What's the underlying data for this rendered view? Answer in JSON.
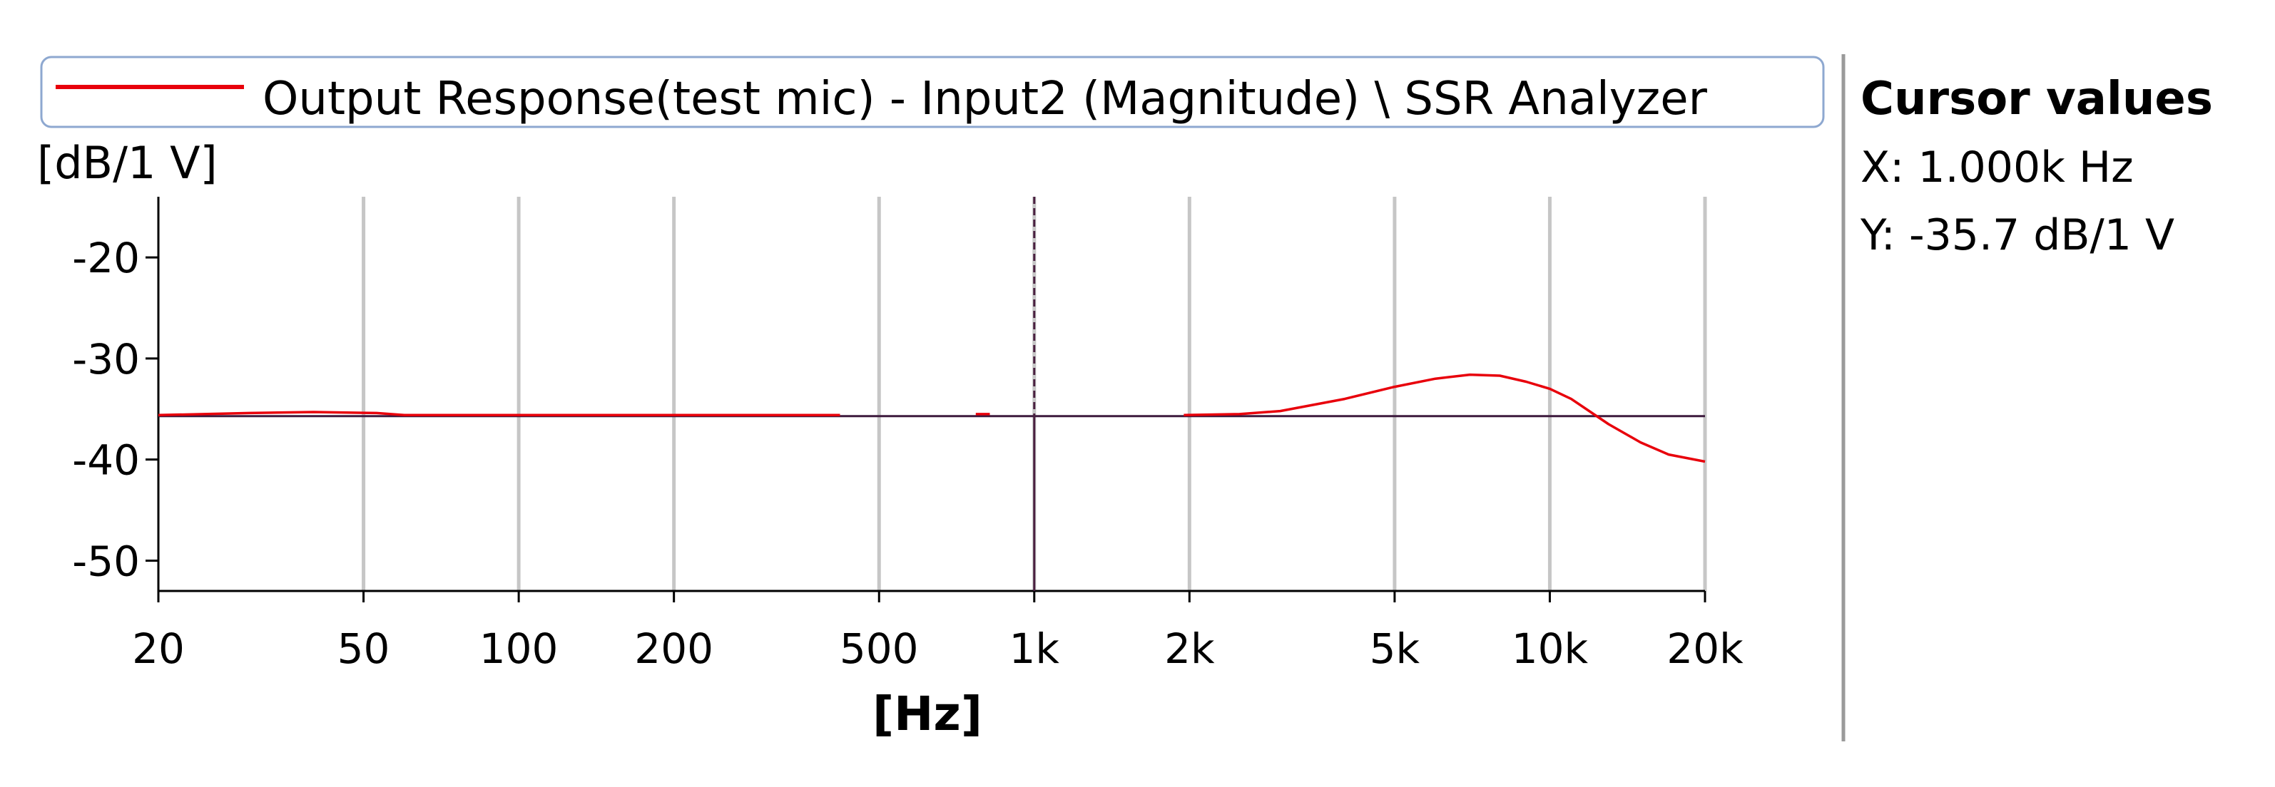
{
  "chart_data": {
    "type": "line",
    "title": "",
    "xlabel": "[Hz]",
    "ylabel": "[dB/1 V]",
    "x_scale": "log",
    "xlim": [
      20,
      20000
    ],
    "ylim": [
      -53,
      -14
    ],
    "x_ticks": [
      {
        "value": 20,
        "label": "20"
      },
      {
        "value": 50,
        "label": "50"
      },
      {
        "value": 100,
        "label": "100"
      },
      {
        "value": 200,
        "label": "200"
      },
      {
        "value": 500,
        "label": "500"
      },
      {
        "value": 1000,
        "label": "1k"
      },
      {
        "value": 2000,
        "label": "2k"
      },
      {
        "value": 5000,
        "label": "5k"
      },
      {
        "value": 10000,
        "label": "10k"
      },
      {
        "value": 20000,
        "label": "20k"
      }
    ],
    "y_ticks": [
      {
        "value": -20,
        "label": "-20"
      },
      {
        "value": -30,
        "label": "-30"
      },
      {
        "value": -40,
        "label": "-40"
      },
      {
        "value": -50,
        "label": "-50"
      }
    ],
    "grid": "vertical",
    "legend": {
      "placement": "top",
      "entries": [
        {
          "name": "Output Response(test mic) - Input2 (Magnitude) \\ SSR Analyzer",
          "color": "#e8000b"
        }
      ]
    },
    "series": [
      {
        "name": "Output Response(test mic) - Input2 (Magnitude) \\ SSR Analyzer",
        "color": "#e8000b",
        "segments": [
          [
            [
              20,
              -35.6
            ],
            [
              30,
              -35.4
            ],
            [
              40,
              -35.3
            ],
            [
              53,
              -35.4
            ],
            [
              60,
              -35.6
            ],
            [
              100,
              -35.6
            ],
            [
              200,
              -35.6
            ],
            [
              300,
              -35.6
            ],
            [
              420,
              -35.6
            ]
          ],
          [
            [
              770,
              -35.5
            ],
            [
              820,
              -35.5
            ]
          ],
          [
            [
              1950,
              -35.6
            ],
            [
              2500,
              -35.5
            ],
            [
              3000,
              -35.2
            ],
            [
              4000,
              -34.0
            ],
            [
              5000,
              -32.8
            ],
            [
              6000,
              -32.0
            ],
            [
              7000,
              -31.6
            ],
            [
              8000,
              -31.7
            ],
            [
              9000,
              -32.3
            ],
            [
              10000,
              -33.0
            ],
            [
              11000,
              -34.0
            ],
            [
              12000,
              -35.3
            ],
            [
              13000,
              -36.5
            ],
            [
              15000,
              -38.3
            ],
            [
              17000,
              -39.5
            ],
            [
              20000,
              -40.2
            ]
          ]
        ]
      }
    ],
    "reference_line": {
      "y": -35.7,
      "color": "#3d1a3d"
    },
    "cursor": {
      "x": 1000,
      "color": "#4a2040"
    }
  },
  "cursor_panel": {
    "title": "Cursor values",
    "x_text": "X: 1.000k Hz",
    "y_text": "Y: -35.7 dB/1 V"
  }
}
